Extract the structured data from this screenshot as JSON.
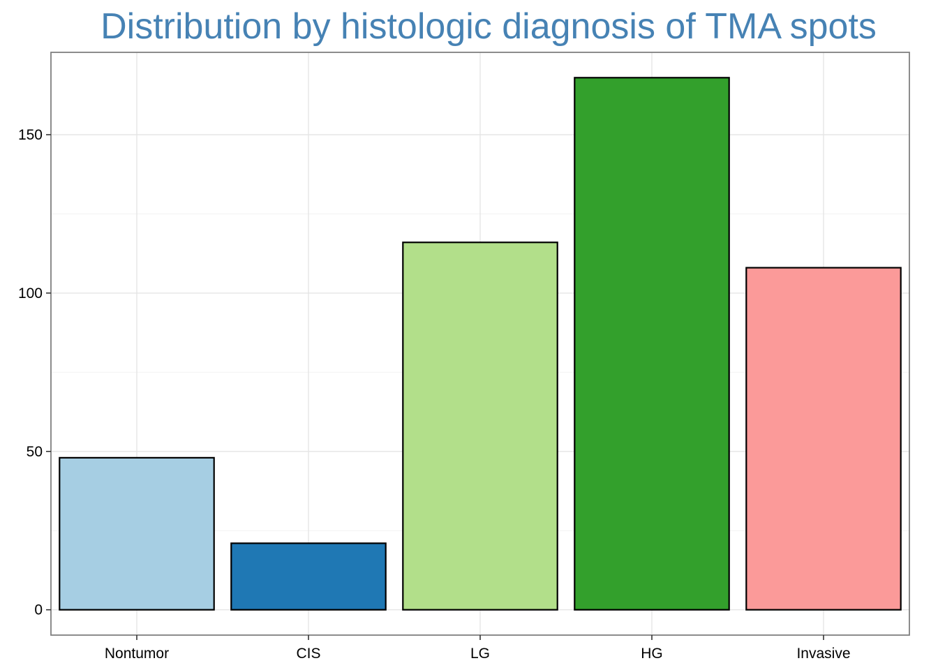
{
  "colors": {
    "title": "#4682B4",
    "panel_border": "#7F7F7F",
    "grid_major": "#E5E5E5",
    "grid_minor": "#F2F2F2",
    "bar_outline": "#000000"
  },
  "chart_data": {
    "type": "bar",
    "title": "Distribution by histologic diagnosis of TMA spots",
    "xlabel": "",
    "ylabel": "",
    "categories": [
      "Nontumor",
      "CIS",
      "LG",
      "HG",
      "Invasive"
    ],
    "values": [
      48,
      21,
      116,
      168,
      108
    ],
    "bar_colors": [
      "#A6CEE3",
      "#1F78B4",
      "#B2DF8A",
      "#33A02C",
      "#FB9A99"
    ],
    "ylim": [
      -8,
      176
    ],
    "yticks": [
      0,
      50,
      100,
      150
    ],
    "y_minor_ticks": [
      25,
      75,
      125
    ],
    "grid": true,
    "legend": "none"
  }
}
